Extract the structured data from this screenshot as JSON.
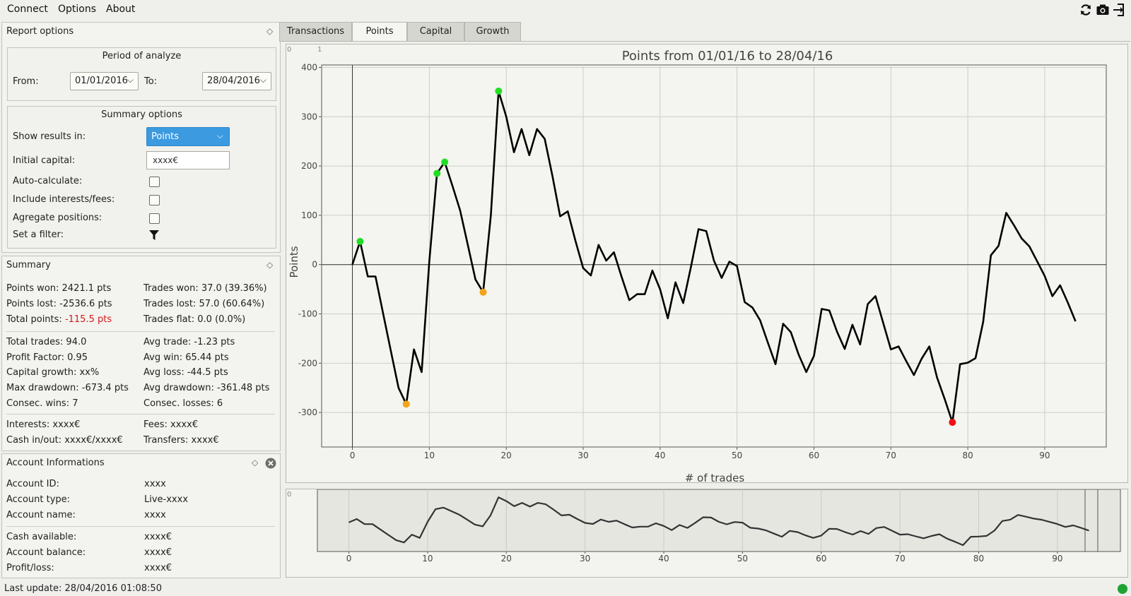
{
  "menu": {
    "items": [
      "Connect",
      "Options",
      "About"
    ]
  },
  "toolbar": {
    "icons": [
      "refresh-icon",
      "camera-icon",
      "export-icon"
    ]
  },
  "report_options": {
    "title": "Report options",
    "period": {
      "title": "Period of analyze",
      "from_label": "From:",
      "from_value": "01/01/2016",
      "to_label": "To:",
      "to_value": "28/04/2016"
    },
    "summary_options": {
      "title": "Summary options",
      "show_results_label": "Show results in:",
      "show_results_value": "Points",
      "initial_capital_label": "Initial capital:",
      "initial_capital_value": "xxxx€",
      "auto_calculate_label": "Auto-calculate:",
      "include_interests_label": "Include interests/fees:",
      "aggregate_label": "Agregate positions:",
      "filter_label": "Set a filter:"
    }
  },
  "summary": {
    "title": "Summary",
    "points_won": "Points won: 2421.1 pts",
    "trades_won": "Trades won: 37.0 (39.36%)",
    "points_lost": "Points lost: -2536.6 pts",
    "trades_lost": "Trades lost: 57.0 (60.64%)",
    "total_points_label": "Total points: ",
    "total_points_value": "-115.5 pts",
    "trades_flat": "Trades flat: 0.0 (0.0%)",
    "total_trades": "Total trades: 94.0",
    "avg_trade": "Avg trade: -1.23 pts",
    "profit_factor": "Profit Factor: 0.95",
    "avg_win": "Avg win: 65.44 pts",
    "capital_growth": "Capital growth: xx%",
    "avg_loss": "Avg loss: -44.5 pts",
    "max_drawdown": "Max drawdown: -673.4 pts",
    "avg_drawdown": "Avg drawdown: -361.48 pts",
    "consec_wins": "Consec. wins: 7",
    "consec_losses": "Consec. losses: 6",
    "interests": "Interests: xxxx€",
    "fees": "Fees: xxxx€",
    "cash_inout": "Cash in/out: xxxx€/xxxx€",
    "transfers": "Transfers: xxxx€"
  },
  "account": {
    "title": "Account Informations",
    "rows": [
      {
        "label": "Account ID:",
        "value": "xxxx"
      },
      {
        "label": "Account type:",
        "value": "Live-xxxx"
      },
      {
        "label": "Account name:",
        "value": "xxxx"
      },
      {
        "label": "Cash available:",
        "value": "xxxx€"
      },
      {
        "label": "Account balance:",
        "value": "xxxx€"
      },
      {
        "label": "Profit/loss:",
        "value": "xxxx€"
      }
    ]
  },
  "tabs": [
    "Transactions",
    "Points",
    "Capital",
    "Growth"
  ],
  "active_tab": "Points",
  "status": {
    "last_update": "Last update: 28/04/2016 01:08:50",
    "connection_color": "#1ea332"
  },
  "chart_data": {
    "type": "line",
    "title": "Points from 01/01/16 to 28/04/16",
    "xlabel": "# of trades",
    "ylabel": "Points",
    "xlim": [
      -4,
      98
    ],
    "ylim": [
      -370,
      405
    ],
    "x_ticks": [
      0,
      10,
      20,
      30,
      40,
      50,
      60,
      70,
      80,
      90
    ],
    "y_ticks": [
      -300,
      -200,
      -100,
      0,
      100,
      200,
      300,
      400
    ],
    "grid": true,
    "line_color": "#000000",
    "x": [
      0,
      1,
      2,
      3,
      4,
      5,
      6,
      7,
      8,
      9,
      10,
      11,
      12,
      13,
      14,
      15,
      16,
      17,
      18,
      19,
      20,
      21,
      22,
      23,
      24,
      25,
      26,
      27,
      28,
      29,
      30,
      31,
      32,
      33,
      34,
      35,
      36,
      37,
      38,
      39,
      40,
      41,
      42,
      43,
      44,
      45,
      46,
      47,
      48,
      49,
      50,
      51,
      52,
      53,
      54,
      55,
      56,
      57,
      58,
      59,
      60,
      61,
      62,
      63,
      64,
      65,
      66,
      67,
      68,
      69,
      70,
      71,
      72,
      73,
      74,
      75,
      76,
      77,
      78,
      79,
      80,
      81,
      82,
      83,
      84,
      85,
      86,
      87,
      88,
      89,
      90,
      91,
      92,
      93,
      94
    ],
    "values": [
      0,
      47,
      -24,
      -24,
      -100,
      -175,
      -250,
      -283,
      -172,
      -218,
      8,
      185,
      208,
      160,
      110,
      40,
      -30,
      -56,
      100,
      352,
      300,
      228,
      275,
      222,
      275,
      255,
      180,
      98,
      108,
      48,
      -7,
      -22,
      40,
      8,
      25,
      -25,
      -72,
      -60,
      -60,
      -12,
      -50,
      -109,
      -36,
      -78,
      -5,
      72,
      68,
      8,
      -27,
      6,
      -3,
      -76,
      -87,
      -113,
      -158,
      -202,
      -120,
      -137,
      -182,
      -218,
      -185,
      -90,
      -93,
      -136,
      -171,
      -122,
      -162,
      -80,
      -64,
      -118,
      -172,
      -166,
      -196,
      -224,
      -191,
      -166,
      -229,
      -273,
      -320,
      -202,
      -199,
      -190,
      -116,
      19,
      38,
      105,
      80,
      53,
      37,
      7,
      -23,
      -64,
      -42,
      -77,
      -115
    ],
    "markers": [
      {
        "x": 1,
        "y": 47,
        "color": "#22dd22"
      },
      {
        "x": 7,
        "y": -283,
        "color": "#f5a31a"
      },
      {
        "x": 11,
        "y": 185,
        "color": "#22dd22"
      },
      {
        "x": 12,
        "y": 208,
        "color": "#22dd22"
      },
      {
        "x": 17,
        "y": -56,
        "color": "#f5a31a"
      },
      {
        "x": 19,
        "y": 352,
        "color": "#22dd22"
      },
      {
        "x": 78,
        "y": -320,
        "color": "#ee1111"
      }
    ],
    "overview": {
      "x_ticks": [
        0,
        10,
        20,
        30,
        40,
        50,
        60,
        70,
        80,
        90
      ],
      "xlim": [
        -4,
        98
      ]
    }
  }
}
